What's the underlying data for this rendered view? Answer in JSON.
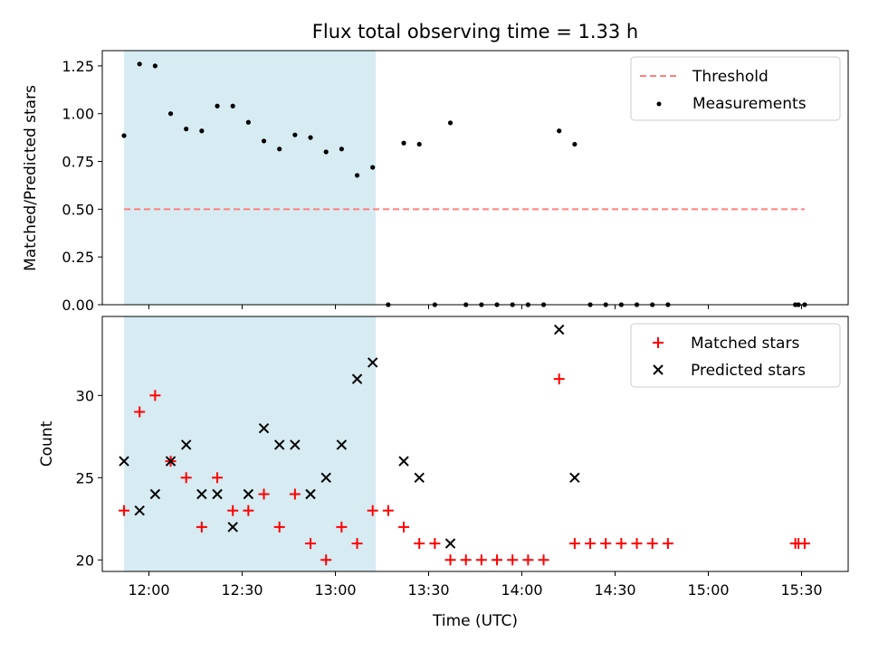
{
  "chart_data": [
    {
      "type": "scatter",
      "title": "Flux total observing time = 1.33 h",
      "ylabel": "Matched/Predicted stars",
      "xlabel": "",
      "ylim": [
        0,
        1.33
      ],
      "yticks": [
        0.0,
        0.25,
        0.5,
        0.75,
        1.0,
        1.25
      ],
      "ytick_labels": [
        "0.00",
        "0.25",
        "0.50",
        "0.75",
        "1.00",
        "1.25"
      ],
      "xlim": [
        "11:45",
        "15:45"
      ],
      "shaded_interval": [
        "11:52",
        "13:13"
      ],
      "shade_color": "#add8e6",
      "legend_position": "upper right",
      "series": [
        {
          "name": "Threshold",
          "kind": "dashed-line",
          "color": "#ff7f7f",
          "x": [
            "11:52",
            "15:31"
          ],
          "y": [
            0.5,
            0.5
          ]
        },
        {
          "name": "Measurements",
          "kind": "dots",
          "color": "#000000",
          "x": [
            "11:52",
            "11:57",
            "12:02",
            "12:07",
            "12:12",
            "12:17",
            "12:22",
            "12:27",
            "12:32",
            "12:37",
            "12:42",
            "12:47",
            "12:52",
            "12:57",
            "13:02",
            "13:07",
            "13:12",
            "13:17",
            "13:22",
            "13:27",
            "13:32",
            "13:37",
            "13:42",
            "13:47",
            "13:52",
            "13:57",
            "14:02",
            "14:07",
            "14:12",
            "14:17",
            "14:22",
            "14:27",
            "14:32",
            "14:37",
            "14:42",
            "14:47",
            "15:28",
            "15:29",
            "15:31"
          ],
          "y": [
            0.885,
            1.26,
            1.25,
            1.0,
            0.92,
            0.91,
            1.04,
            1.04,
            0.955,
            0.857,
            0.815,
            0.889,
            0.875,
            0.8,
            0.815,
            0.677,
            0.719,
            0,
            0.846,
            0.84,
            0,
            0.952,
            0,
            0,
            0,
            0,
            0,
            0,
            0.91,
            0.84,
            0,
            0,
            0,
            0,
            0,
            0,
            0,
            0,
            0
          ]
        }
      ]
    },
    {
      "type": "scatter",
      "title": "",
      "ylabel": "Count",
      "xlabel": "Time (UTC)",
      "ylim": [
        19.3,
        34.8
      ],
      "yticks": [
        20,
        25,
        30
      ],
      "ytick_labels": [
        "20",
        "25",
        "30"
      ],
      "xlim": [
        "11:45",
        "15:45"
      ],
      "xticks": [
        "12:00",
        "12:30",
        "13:00",
        "13:30",
        "14:00",
        "14:30",
        "15:00",
        "15:30"
      ],
      "shaded_interval": [
        "11:52",
        "13:13"
      ],
      "shade_color": "#add8e6",
      "legend_position": "upper right",
      "series": [
        {
          "name": "Matched stars",
          "kind": "plus",
          "color": "#ff0000",
          "x": [
            "11:52",
            "11:57",
            "12:02",
            "12:07",
            "12:12",
            "12:17",
            "12:22",
            "12:27",
            "12:32",
            "12:37",
            "12:42",
            "12:47",
            "12:52",
            "12:57",
            "13:02",
            "13:07",
            "13:12",
            "13:17",
            "13:22",
            "13:27",
            "13:32",
            "13:37",
            "13:42",
            "13:47",
            "13:52",
            "13:57",
            "14:02",
            "14:07",
            "14:12",
            "14:17",
            "14:22",
            "14:27",
            "14:32",
            "14:37",
            "14:42",
            "14:47",
            "15:28",
            "15:29",
            "15:31"
          ],
          "y": [
            23,
            29,
            30,
            26,
            25,
            22,
            25,
            23,
            23,
            24,
            22,
            24,
            21,
            20,
            22,
            21,
            23,
            23,
            22,
            21,
            21,
            20,
            20,
            20,
            20,
            20,
            20,
            20,
            31,
            21,
            21,
            21,
            21,
            21,
            21,
            21,
            21,
            21,
            21
          ]
        },
        {
          "name": "Predicted stars",
          "kind": "x",
          "color": "#000000",
          "x": [
            "11:52",
            "11:57",
            "12:02",
            "12:07",
            "12:12",
            "12:17",
            "12:22",
            "12:27",
            "12:32",
            "12:37",
            "12:42",
            "12:47",
            "12:52",
            "12:57",
            "13:02",
            "13:07",
            "13:12",
            "13:22",
            "13:27",
            "13:37",
            "14:12",
            "14:17"
          ],
          "y": [
            26,
            23,
            24,
            26,
            27,
            24,
            24,
            22,
            24,
            28,
            27,
            27,
            24,
            25,
            27,
            31,
            32,
            26,
            25,
            21,
            34,
            25
          ]
        }
      ]
    }
  ]
}
